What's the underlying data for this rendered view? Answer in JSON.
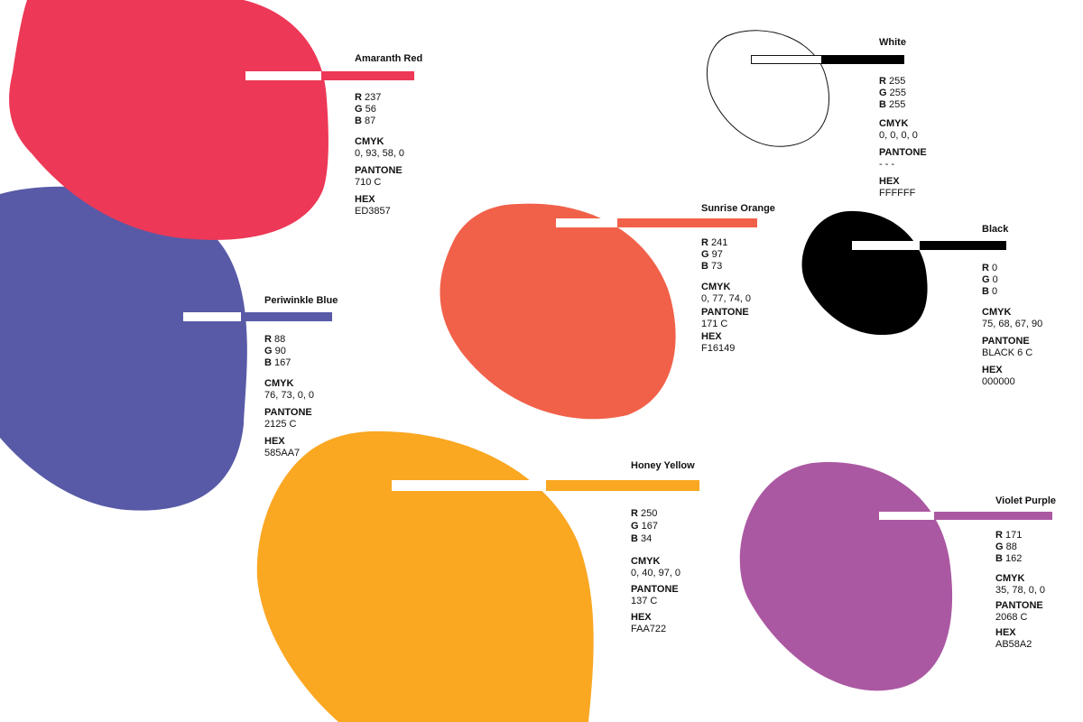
{
  "swatches": [
    {
      "id": "amaranth-red",
      "name": "Amaranth Red",
      "fill": "#ED3857",
      "r_label": "R",
      "r": "237",
      "g_label": "G",
      "g": "56",
      "b_label": "B",
      "b": "87",
      "cmyk_label": "CMYK",
      "cmyk": "0, 93, 58, 0",
      "pantone_label": "PANTONE",
      "pantone": "710 C",
      "hex_label": "HEX",
      "hex": "ED3857"
    },
    {
      "id": "periwinkle-blue",
      "name": "Periwinkle Blue",
      "fill": "#585AA7",
      "r_label": "R",
      "r": "88",
      "g_label": "G",
      "g": "90",
      "b_label": "B",
      "b": "167",
      "cmyk_label": "CMYK",
      "cmyk": "76, 73, 0, 0",
      "pantone_label": "PANTONE",
      "pantone": "2125 C",
      "hex_label": "HEX",
      "hex": "585AA7"
    },
    {
      "id": "sunrise-orange",
      "name": "Sunrise Orange",
      "fill": "#F16149",
      "r_label": "R",
      "r": "241",
      "g_label": "G",
      "g": "97",
      "b_label": "B",
      "b": "73",
      "cmyk_label": "CMYK",
      "cmyk": "0, 77, 74, 0",
      "pantone_label": "PANTONE",
      "pantone": "171 C",
      "hex_label": "HEX",
      "hex": "F16149"
    },
    {
      "id": "white",
      "name": "White",
      "fill": "#FFFFFF",
      "r_label": "R",
      "r": "255",
      "g_label": "G",
      "g": "255",
      "b_label": "B",
      "b": "255",
      "cmyk_label": "CMYK",
      "cmyk": "0, 0, 0, 0",
      "pantone_label": "PANTONE",
      "pantone": "- - -",
      "hex_label": "HEX",
      "hex": "FFFFFF"
    },
    {
      "id": "black",
      "name": "Black",
      "fill": "#000000",
      "r_label": "R",
      "r": "0",
      "g_label": "G",
      "g": "0",
      "b_label": "B",
      "b": "0",
      "cmyk_label": "CMYK",
      "cmyk": "75, 68, 67, 90",
      "pantone_label": "PANTONE",
      "pantone": "BLACK 6 C",
      "hex_label": "HEX",
      "hex": "000000"
    },
    {
      "id": "honey-yellow",
      "name": "Honey Yellow",
      "fill": "#FAA722",
      "r_label": "R",
      "r": "250",
      "g_label": "G",
      "g": "167",
      "b_label": "B",
      "b": "34",
      "cmyk_label": "CMYK",
      "cmyk": "0, 40, 97, 0",
      "pantone_label": "PANTONE",
      "pantone": "137 C",
      "hex_label": "HEX",
      "hex": "FAA722"
    },
    {
      "id": "violet-purple",
      "name": "Violet Purple",
      "fill": "#AB58A2",
      "r_label": "R",
      "r": "171",
      "g_label": "G",
      "g": "88",
      "b_label": "B",
      "b": "162",
      "cmyk_label": "CMYK",
      "cmyk": "35, 78, 0, 0",
      "pantone_label": "PANTONE",
      "pantone": "2068 C",
      "hex_label": "HEX",
      "hex": "AB58A2"
    }
  ]
}
